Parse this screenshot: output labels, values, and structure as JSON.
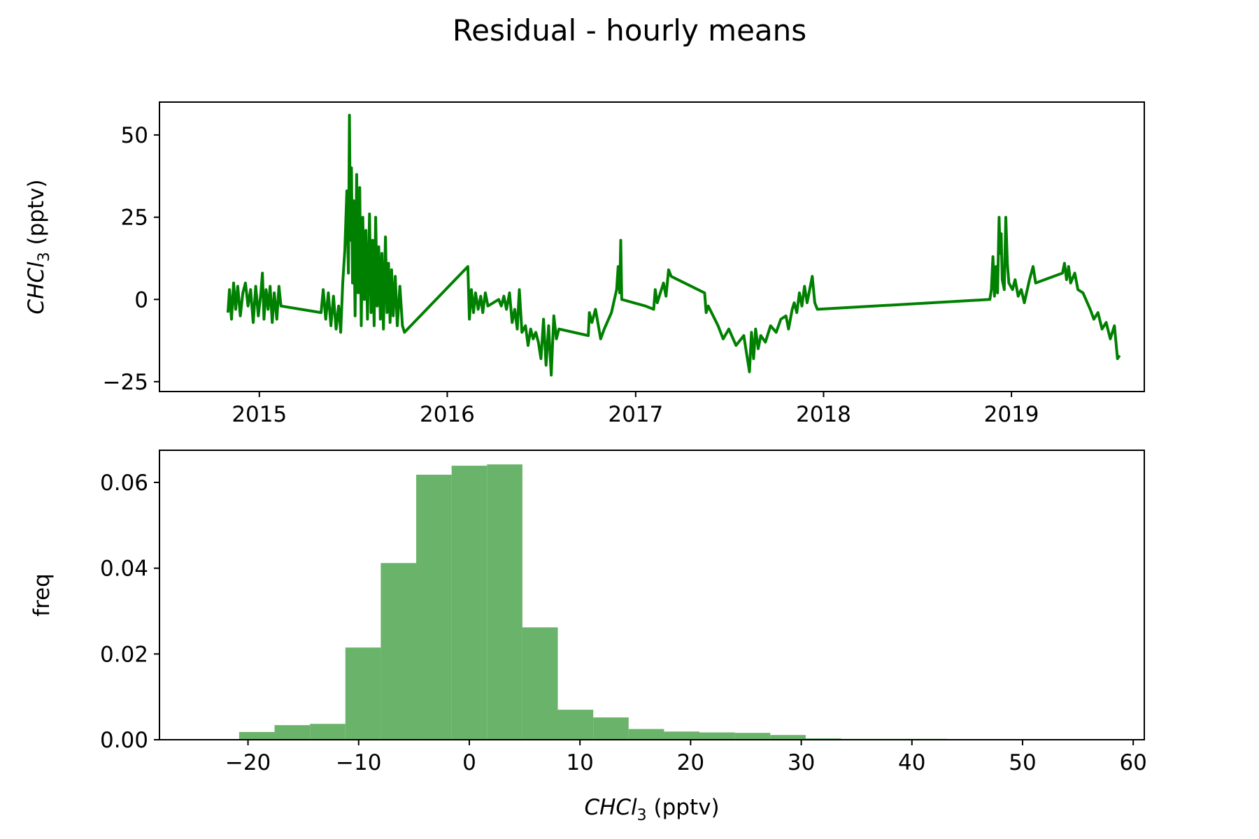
{
  "figure": {
    "title": "Residual - hourly means",
    "colors": {
      "line": "#008000",
      "hist": "#6ab36a",
      "axis": "#000000"
    }
  },
  "chart_data": [
    {
      "type": "line",
      "panel": "top",
      "xlabel": "",
      "ylabel_main": "CHCl",
      "ylabel_sub": "3",
      "ylabel_tail": " (pptv)",
      "xlim": [
        "2014-06-21",
        "2019-09-16"
      ],
      "ylim": [
        -28,
        60
      ],
      "x_ticks": [
        {
          "date": "2015-01-01",
          "label": "2015"
        },
        {
          "date": "2016-01-01",
          "label": "2016"
        },
        {
          "date": "2017-01-01",
          "label": "2017"
        },
        {
          "date": "2018-01-01",
          "label": "2018"
        },
        {
          "date": "2019-01-01",
          "label": "2019"
        }
      ],
      "y_ticks": [
        {
          "value": 50,
          "label": "50"
        },
        {
          "value": 25,
          "label": "25"
        },
        {
          "value": 0,
          "label": "0"
        },
        {
          "value": -25,
          "label": "−25"
        }
      ],
      "series": [
        {
          "points": [
            [
              "2014-11-01",
              -4
            ],
            [
              "2014-11-04",
              3
            ],
            [
              "2014-11-08",
              -6
            ],
            [
              "2014-11-12",
              5
            ],
            [
              "2014-11-16",
              -3
            ],
            [
              "2014-11-20",
              4
            ],
            [
              "2014-11-25",
              -5
            ],
            [
              "2014-11-30",
              2
            ],
            [
              "2014-12-05",
              5
            ],
            [
              "2014-12-10",
              -2
            ],
            [
              "2014-12-15",
              3
            ],
            [
              "2014-12-20",
              -7
            ],
            [
              "2014-12-25",
              4
            ],
            [
              "2014-12-30",
              -5
            ],
            [
              "2015-01-04",
              2
            ],
            [
              "2015-01-07",
              8
            ],
            [
              "2015-01-10",
              -6
            ],
            [
              "2015-01-14",
              3
            ],
            [
              "2015-01-18",
              -3
            ],
            [
              "2015-01-22",
              4
            ],
            [
              "2015-01-26",
              -7
            ],
            [
              "2015-01-30",
              2
            ],
            [
              "2015-02-04",
              -6
            ],
            [
              "2015-02-08",
              4
            ],
            [
              "2015-02-12",
              -2
            ],
            [
              "2015-05-01",
              -4
            ],
            [
              "2015-05-05",
              3
            ],
            [
              "2015-05-10",
              -6
            ],
            [
              "2015-05-15",
              2
            ],
            [
              "2015-05-20",
              -8
            ],
            [
              "2015-05-25",
              1
            ],
            [
              "2015-05-30",
              -9
            ],
            [
              "2015-06-04",
              -2
            ],
            [
              "2015-06-08",
              -10
            ],
            [
              "2015-06-12",
              5
            ],
            [
              "2015-06-16",
              15
            ],
            [
              "2015-06-20",
              33
            ],
            [
              "2015-06-23",
              8
            ],
            [
              "2015-06-25",
              56
            ],
            [
              "2015-06-27",
              18
            ],
            [
              "2015-06-29",
              40
            ],
            [
              "2015-07-01",
              5
            ],
            [
              "2015-07-03",
              30
            ],
            [
              "2015-07-06",
              -5
            ],
            [
              "2015-07-09",
              38
            ],
            [
              "2015-07-12",
              2
            ],
            [
              "2015-07-15",
              34
            ],
            [
              "2015-07-18",
              -8
            ],
            [
              "2015-07-21",
              25
            ],
            [
              "2015-07-24",
              0
            ],
            [
              "2015-07-27",
              21
            ],
            [
              "2015-07-30",
              -6
            ],
            [
              "2015-08-03",
              26
            ],
            [
              "2015-08-06",
              -4
            ],
            [
              "2015-08-09",
              18
            ],
            [
              "2015-08-12",
              -8
            ],
            [
              "2015-08-15",
              25
            ],
            [
              "2015-08-18",
              -2
            ],
            [
              "2015-08-21",
              16
            ],
            [
              "2015-08-24",
              -6
            ],
            [
              "2015-08-27",
              14
            ],
            [
              "2015-08-30",
              -9
            ],
            [
              "2015-09-03",
              19
            ],
            [
              "2015-09-06",
              -4
            ],
            [
              "2015-09-09",
              11
            ],
            [
              "2015-09-12",
              -7
            ],
            [
              "2015-09-15",
              9
            ],
            [
              "2015-09-18",
              -5
            ],
            [
              "2015-09-22",
              7
            ],
            [
              "2015-09-26",
              -8
            ],
            [
              "2015-10-01",
              4
            ],
            [
              "2015-10-06",
              -8
            ],
            [
              "2015-10-10",
              -10
            ],
            [
              "2016-02-10",
              10
            ],
            [
              "2016-02-13",
              -6
            ],
            [
              "2016-02-17",
              3
            ],
            [
              "2016-02-21",
              -4
            ],
            [
              "2016-02-25",
              2
            ],
            [
              "2016-03-01",
              -3
            ],
            [
              "2016-03-06",
              1
            ],
            [
              "2016-03-10",
              -4
            ],
            [
              "2016-03-15",
              2
            ],
            [
              "2016-03-20",
              -2
            ],
            [
              "2016-04-10",
              0
            ],
            [
              "2016-04-15",
              -2
            ],
            [
              "2016-04-20",
              1
            ],
            [
              "2016-04-25",
              -3
            ],
            [
              "2016-05-01",
              2
            ],
            [
              "2016-05-06",
              -7
            ],
            [
              "2016-05-11",
              -3
            ],
            [
              "2016-05-16",
              -9
            ],
            [
              "2016-05-20",
              3
            ],
            [
              "2016-05-25",
              -10
            ],
            [
              "2016-06-01",
              -8
            ],
            [
              "2016-06-06",
              -14
            ],
            [
              "2016-06-11",
              -9
            ],
            [
              "2016-06-16",
              -12
            ],
            [
              "2016-06-21",
              -10
            ],
            [
              "2016-06-26",
              -13
            ],
            [
              "2016-07-01",
              -18
            ],
            [
              "2016-07-06",
              -6
            ],
            [
              "2016-07-11",
              -20
            ],
            [
              "2016-07-16",
              -8
            ],
            [
              "2016-07-21",
              -23
            ],
            [
              "2016-07-26",
              -5
            ],
            [
              "2016-07-31",
              -12
            ],
            [
              "2016-08-05",
              -9
            ],
            [
              "2016-10-01",
              -11
            ],
            [
              "2016-10-03",
              -4
            ],
            [
              "2016-10-08",
              -7
            ],
            [
              "2016-10-15",
              -3
            ],
            [
              "2016-10-25",
              -12
            ],
            [
              "2016-11-01",
              -9
            ],
            [
              "2016-11-15",
              -4
            ],
            [
              "2016-11-25",
              3
            ],
            [
              "2016-11-28",
              10
            ],
            [
              "2016-12-01",
              2
            ],
            [
              "2016-12-03",
              18
            ],
            [
              "2016-12-05",
              0
            ],
            [
              "2017-01-20",
              -2
            ],
            [
              "2017-02-05",
              -3
            ],
            [
              "2017-02-08",
              3
            ],
            [
              "2017-02-12",
              -1
            ],
            [
              "2017-02-18",
              2
            ],
            [
              "2017-02-24",
              5
            ],
            [
              "2017-03-01",
              1
            ],
            [
              "2017-03-06",
              9
            ],
            [
              "2017-03-11",
              7
            ],
            [
              "2017-05-15",
              2
            ],
            [
              "2017-05-18",
              -4
            ],
            [
              "2017-05-22",
              -2
            ],
            [
              "2017-06-10",
              -8
            ],
            [
              "2017-06-20",
              -12
            ],
            [
              "2017-07-01",
              -9
            ],
            [
              "2017-07-15",
              -14
            ],
            [
              "2017-07-30",
              -11
            ],
            [
              "2017-08-10",
              -22
            ],
            [
              "2017-08-14",
              -10
            ],
            [
              "2017-08-18",
              -18
            ],
            [
              "2017-08-22",
              -9
            ],
            [
              "2017-08-27",
              -15
            ],
            [
              "2017-09-01",
              -11
            ],
            [
              "2017-09-10",
              -13
            ],
            [
              "2017-09-20",
              -8
            ],
            [
              "2017-10-01",
              -10
            ],
            [
              "2017-10-10",
              -6
            ],
            [
              "2017-10-20",
              -5
            ],
            [
              "2017-10-25",
              -9
            ],
            [
              "2017-11-01",
              -3
            ],
            [
              "2017-11-05",
              -1
            ],
            [
              "2017-11-10",
              -4
            ],
            [
              "2017-11-15",
              2
            ],
            [
              "2017-11-20",
              -2
            ],
            [
              "2017-11-25",
              4
            ],
            [
              "2017-11-30",
              -1
            ],
            [
              "2017-12-05",
              3
            ],
            [
              "2017-12-10",
              7
            ],
            [
              "2017-12-15",
              -1
            ],
            [
              "2017-12-20",
              -3
            ],
            [
              "2018-11-20",
              0
            ],
            [
              "2018-11-23",
              3
            ],
            [
              "2018-11-26",
              13
            ],
            [
              "2018-11-29",
              1
            ],
            [
              "2018-12-02",
              10
            ],
            [
              "2018-12-05",
              2
            ],
            [
              "2018-12-08",
              25
            ],
            [
              "2018-12-10",
              14
            ],
            [
              "2018-12-12",
              20
            ],
            [
              "2018-12-14",
              6
            ],
            [
              "2018-12-18",
              3
            ],
            [
              "2018-12-21",
              25
            ],
            [
              "2018-12-24",
              11
            ],
            [
              "2018-12-27",
              5
            ],
            [
              "2019-01-03",
              3
            ],
            [
              "2019-01-08",
              6
            ],
            [
              "2019-01-14",
              1
            ],
            [
              "2019-01-20",
              3
            ],
            [
              "2019-01-26",
              -1
            ],
            [
              "2019-02-05",
              6
            ],
            [
              "2019-02-12",
              10
            ],
            [
              "2019-02-17",
              5
            ],
            [
              "2019-04-10",
              8
            ],
            [
              "2019-04-14",
              11
            ],
            [
              "2019-04-18",
              6
            ],
            [
              "2019-04-22",
              10
            ],
            [
              "2019-04-26",
              5
            ],
            [
              "2019-05-04",
              8
            ],
            [
              "2019-05-10",
              3
            ],
            [
              "2019-05-20",
              2
            ],
            [
              "2019-06-03",
              -3
            ],
            [
              "2019-06-10",
              -6
            ],
            [
              "2019-06-18",
              -4
            ],
            [
              "2019-06-26",
              -9
            ],
            [
              "2019-07-04",
              -7
            ],
            [
              "2019-07-12",
              -12
            ],
            [
              "2019-07-20",
              -8
            ],
            [
              "2019-07-26",
              -18
            ],
            [
              "2019-07-30",
              -17
            ]
          ]
        }
      ]
    },
    {
      "type": "bar",
      "panel": "bottom",
      "xlabel_main": "CHCl",
      "xlabel_sub": "3",
      "xlabel_tail": " (pptv)",
      "ylabel": "freq",
      "xlim": [
        -28,
        61
      ],
      "ylim": [
        0,
        0.0675
      ],
      "x_ticks": [
        {
          "value": -20,
          "label": "−20"
        },
        {
          "value": -10,
          "label": "−10"
        },
        {
          "value": 0,
          "label": "0"
        },
        {
          "value": 10,
          "label": "10"
        },
        {
          "value": 20,
          "label": "20"
        },
        {
          "value": 30,
          "label": "30"
        },
        {
          "value": 40,
          "label": "40"
        },
        {
          "value": 50,
          "label": "50"
        },
        {
          "value": 60,
          "label": "60"
        }
      ],
      "y_ticks": [
        {
          "value": 0.0,
          "label": "0.00"
        },
        {
          "value": 0.02,
          "label": "0.02"
        },
        {
          "value": 0.04,
          "label": "0.04"
        },
        {
          "value": 0.06,
          "label": "0.06"
        }
      ],
      "bin_edges": [
        -20.8,
        -17.6,
        -14.4,
        -11.2,
        -8.0,
        -4.8,
        -1.6,
        1.6,
        4.8,
        8.0,
        11.2,
        14.4,
        17.6,
        20.8,
        24.0,
        27.2,
        30.4,
        33.6,
        36.8,
        40.0,
        43.2,
        46.4,
        49.6,
        52.8,
        56.0
      ],
      "values": [
        0.0018,
        0.0034,
        0.0037,
        0.0215,
        0.0412,
        0.0618,
        0.0639,
        0.0642,
        0.0262,
        0.007,
        0.0052,
        0.0025,
        0.0019,
        0.0017,
        0.0016,
        0.0011,
        0.0003,
        0.0002,
        0.0002,
        0.0002,
        0.0001,
        0.0001,
        0.0001,
        0.0001
      ]
    }
  ]
}
